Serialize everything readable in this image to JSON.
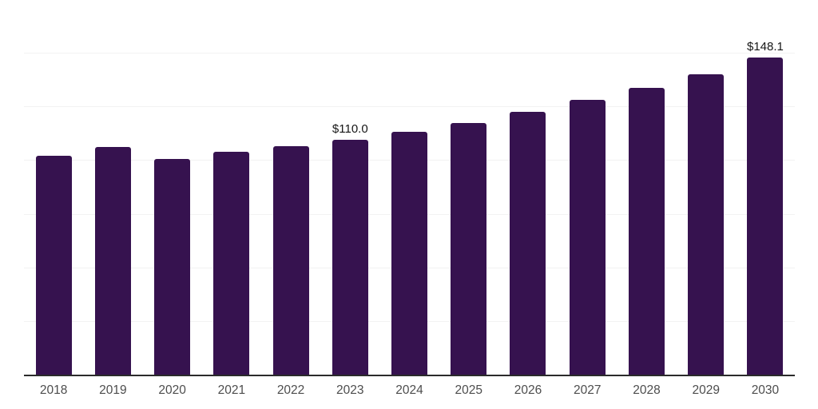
{
  "chart_data": {
    "type": "bar",
    "categories": [
      "2018",
      "2019",
      "2020",
      "2021",
      "2022",
      "2023",
      "2024",
      "2025",
      "2026",
      "2027",
      "2028",
      "2029",
      "2030"
    ],
    "values": [
      102.3,
      106.5,
      101.0,
      104.4,
      106.9,
      110.0,
      113.4,
      117.7,
      122.7,
      128.3,
      134.2,
      140.5,
      148.1
    ],
    "data_labels": [
      {
        "category": "2023",
        "text": "$110.0"
      },
      {
        "category": "2030",
        "text": "$148.1"
      }
    ],
    "value_prefix": "$",
    "ylim": [
      0,
      175
    ],
    "gridline_step": 25,
    "grid": "horizontal",
    "legend": "none",
    "x_axis_line": true,
    "y_axis_labels": "none"
  },
  "style": {
    "bar_color": "#36124f",
    "grid_color": "#f2f2f2",
    "axis_color": "#2b2b2b",
    "tick_label_color": "#4d4d4d",
    "data_label_color": "#161616",
    "background": "#ffffff"
  }
}
